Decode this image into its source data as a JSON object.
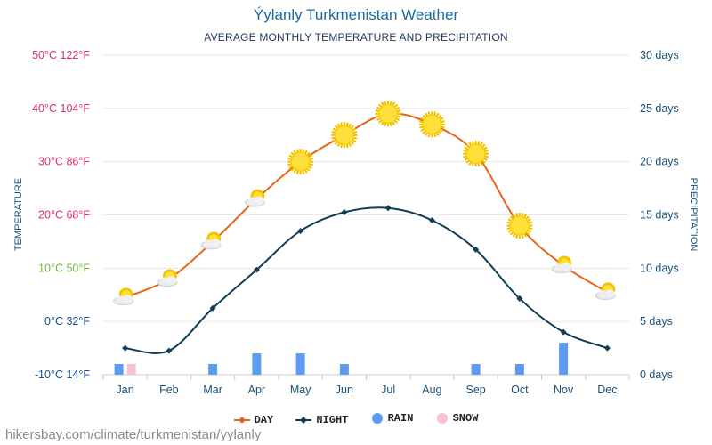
{
  "title": "Ýylanly Turkmenistan Weather",
  "subtitle": "AVERAGE MONTHLY TEMPERATURE AND PRECIPITATION",
  "footer": "hikersbay.com/climate/turkmenistan/yylanly",
  "colors": {
    "day": "#e8651a",
    "night": "#123d57",
    "rain": "#5b9cf2",
    "snow": "#f6c2cf",
    "grid": "#e8e8e8",
    "temp_hot": "#e0306e",
    "temp_mild": "#6aba37",
    "temp_cold": "#1b4f8c",
    "precip_axis": "#1a5276"
  },
  "legend": {
    "day": "DAY",
    "night": "NIGHT",
    "rain": "RAIN",
    "snow": "SNOW"
  },
  "chart_data": {
    "type": "line",
    "title": "Ýylanly Turkmenistan Weather",
    "subtitle": "AVERAGE MONTHLY TEMPERATURE AND PRECIPITATION",
    "categories": [
      "Jan",
      "Feb",
      "Mar",
      "Apr",
      "May",
      "Jun",
      "Jul",
      "Aug",
      "Sep",
      "Oct",
      "Nov",
      "Dec"
    ],
    "y_left_label": "TEMPERATURE",
    "y_right_label": "PRECIPITATION",
    "y_left_range": [
      -10,
      50
    ],
    "y_left_ticks": [
      {
        "value": 50,
        "label": "50°C 122°F",
        "tone": "hot"
      },
      {
        "value": 40,
        "label": "40°C 104°F",
        "tone": "hot"
      },
      {
        "value": 30,
        "label": "30°C 86°F",
        "tone": "hot"
      },
      {
        "value": 20,
        "label": "20°C 68°F",
        "tone": "hot"
      },
      {
        "value": 10,
        "label": "10°C 50°F",
        "tone": "mild"
      },
      {
        "value": 0,
        "label": "0°C 32°F",
        "tone": "cold"
      },
      {
        "value": -10,
        "label": "-10°C 14°F",
        "tone": "cold"
      }
    ],
    "y_right_range": [
      0,
      30
    ],
    "y_right_ticks": [
      {
        "value": 30,
        "label": "30 days"
      },
      {
        "value": 25,
        "label": "25 days"
      },
      {
        "value": 20,
        "label": "20 days"
      },
      {
        "value": 15,
        "label": "15 days"
      },
      {
        "value": 10,
        "label": "10 days"
      },
      {
        "value": 5,
        "label": "5 days"
      },
      {
        "value": 0,
        "label": "0 days"
      }
    ],
    "series": [
      {
        "name": "DAY",
        "type": "line",
        "values": [
          4.5,
          8,
          15,
          23,
          30,
          35,
          39,
          37,
          31.5,
          18,
          10.5,
          5.5
        ]
      },
      {
        "name": "NIGHT",
        "type": "line",
        "values": [
          -5,
          -5.5,
          2.5,
          9.7,
          17,
          20.5,
          21.3,
          19,
          13.5,
          4.3,
          -2,
          -5
        ]
      },
      {
        "name": "RAIN",
        "type": "bar",
        "values": [
          1,
          0,
          1,
          2,
          2,
          1,
          0,
          0,
          1,
          1,
          3,
          0
        ]
      },
      {
        "name": "SNOW",
        "type": "bar",
        "values": [
          1,
          0,
          0,
          0,
          0,
          0,
          0,
          0,
          0,
          0,
          0,
          0
        ]
      }
    ],
    "day_icons": [
      "partly-cloudy",
      "partly-cloudy",
      "partly-cloudy",
      "partly-cloudy",
      "sunny",
      "sunny",
      "sunny",
      "sunny",
      "sunny",
      "sunny",
      "partly-cloudy",
      "partly-cloudy"
    ],
    "grid": true,
    "legend_position": "bottom-center"
  }
}
